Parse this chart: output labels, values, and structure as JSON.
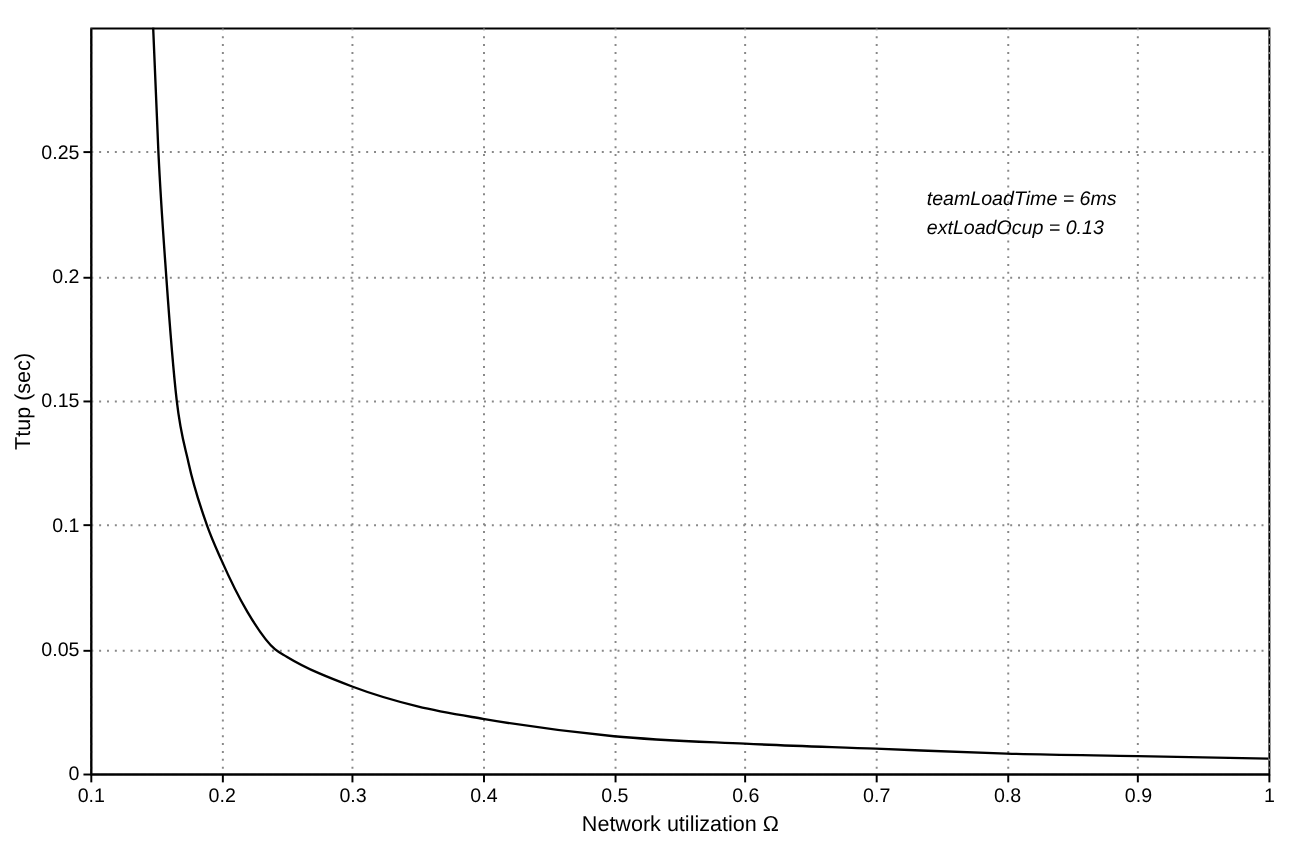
{
  "chart_data": {
    "type": "line",
    "xlabel": "Network utilization     Ω",
    "ylabel": "Ttup (sec)",
    "x": [
      0.148,
      0.152,
      0.158,
      0.166,
      0.175,
      0.189,
      0.2,
      0.22,
      0.241,
      0.25,
      0.3,
      0.35,
      0.4,
      0.5,
      0.6,
      0.7,
      0.8,
      0.9,
      1.0
    ],
    "series": [
      {
        "color": "#000000",
        "values": [
          0.3,
          0.25,
          0.2,
          0.15,
          0.125,
          0.1,
          0.086,
          0.065,
          0.05,
          0.047,
          0.035,
          0.027,
          0.022,
          0.015,
          0.012,
          0.01,
          0.008,
          0.007,
          0.006
        ]
      }
    ],
    "xlim": [
      0.1,
      1
    ],
    "ylim": [
      0,
      0.3
    ],
    "xticks": [
      0.1,
      0.2,
      0.3,
      0.4,
      0.5,
      0.6,
      0.7,
      0.8,
      0.9,
      1
    ],
    "yticks": [
      0,
      0.05,
      0.1,
      0.15,
      0.2,
      0.25
    ],
    "grid": true,
    "marker": "none",
    "line_style": "solid",
    "annotations": [
      "teamLoadTime = 6ms",
      "extLoadOcup = 0.13"
    ]
  }
}
